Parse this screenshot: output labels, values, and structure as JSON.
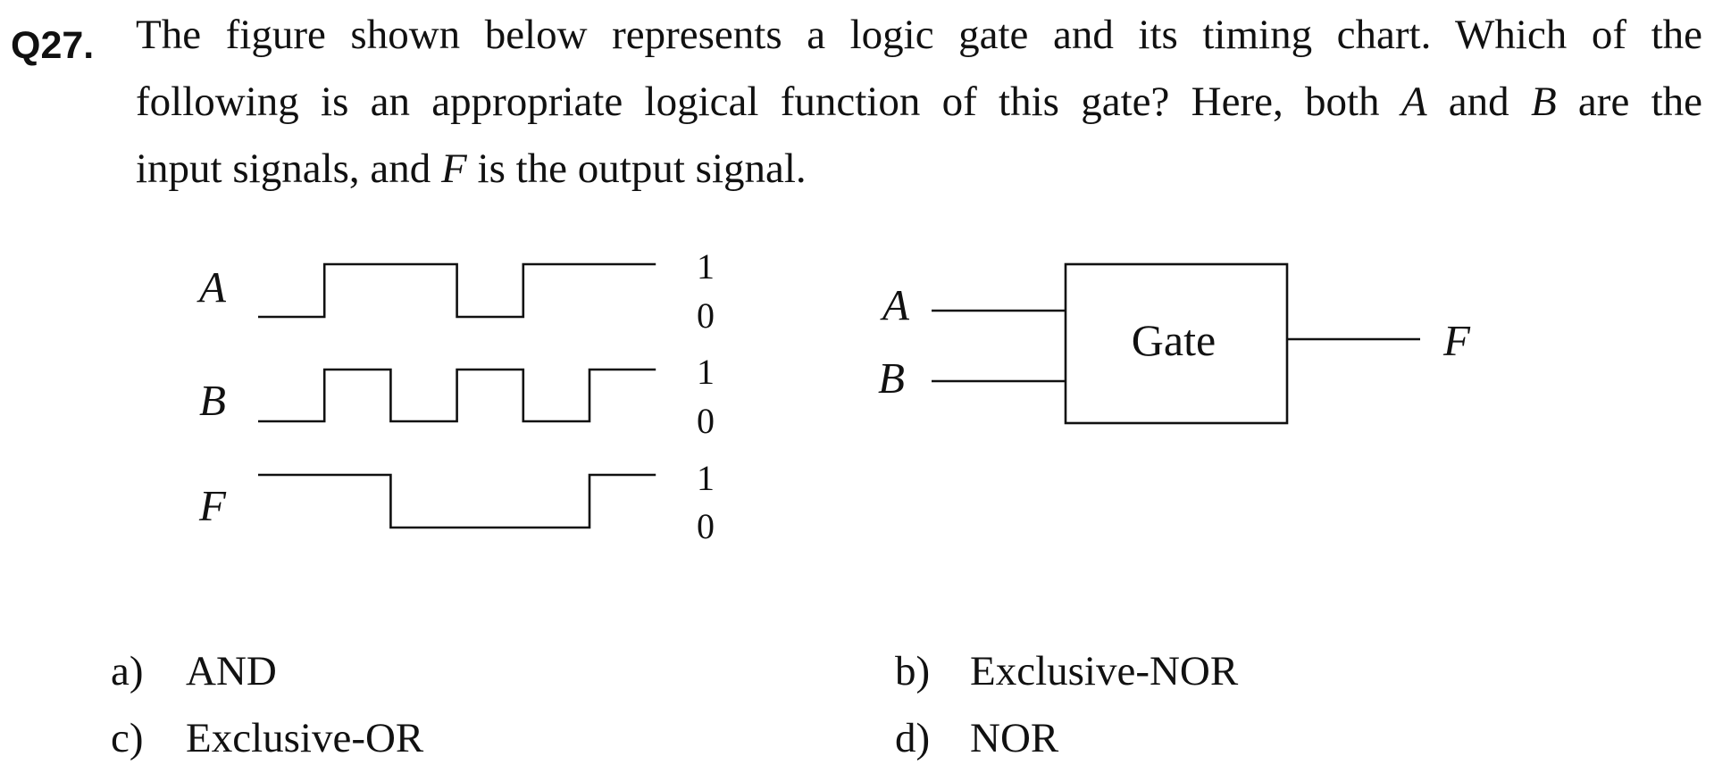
{
  "question": {
    "number": "Q27.",
    "line1": "The figure shown below represents a logic gate and its timing chart.   Which of the",
    "line2_a": "following is an appropriate logical function of this gate?   Here, both ",
    "line2_var_a": "A",
    "line2_b": " and ",
    "line2_var_b": "B",
    "line2_c": " are the",
    "line3_a": "input signals, and ",
    "line3_var_f": "F",
    "line3_b": " is the output signal."
  },
  "timing_chart": {
    "signals": [
      {
        "name": "A",
        "levels": [
          0,
          1,
          1,
          0,
          1,
          1
        ]
      },
      {
        "name": "B",
        "levels": [
          0,
          1,
          0,
          1,
          0,
          1
        ]
      },
      {
        "name": "F",
        "levels": [
          1,
          1,
          0,
          0,
          0,
          1
        ]
      }
    ],
    "high_label": "1",
    "low_label": "0"
  },
  "gate": {
    "label": "Gate",
    "input_a": "A",
    "input_b": "B",
    "output": "F"
  },
  "options": [
    {
      "key": "a)",
      "text": "AND"
    },
    {
      "key": "b)",
      "text": "Exclusive-NOR"
    },
    {
      "key": "c)",
      "text": "Exclusive-OR"
    },
    {
      "key": "d)",
      "text": "NOR"
    }
  ]
}
